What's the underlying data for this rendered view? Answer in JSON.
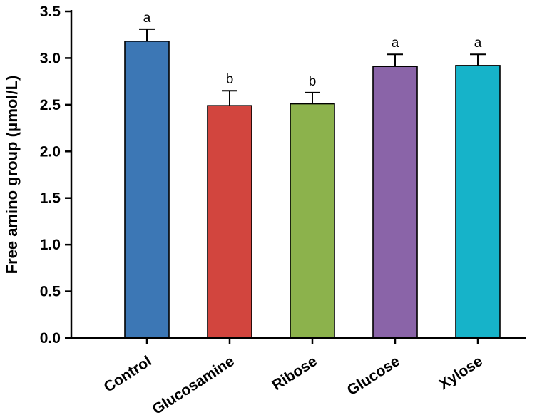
{
  "chart_data": {
    "type": "bar",
    "title": "",
    "categories": [
      "Control",
      "Glucosamine",
      "Ribose",
      "Glucose",
      "Xylose"
    ],
    "values": [
      3.18,
      2.49,
      2.51,
      2.91,
      2.92
    ],
    "errors": [
      0.13,
      0.16,
      0.12,
      0.13,
      0.12
    ],
    "sig_letters": [
      "a",
      "b",
      "b",
      "a",
      "a"
    ],
    "bar_colors": [
      "#3c77b5",
      "#d2453e",
      "#8cb24c",
      "#8a64a8",
      "#16b3c9"
    ],
    "bar_edge_color": "#000000",
    "error_bar_color": "#000000",
    "axis_color": "#000000",
    "xlabel": "",
    "ylabel": "Free amino group (μmol/L)",
    "ylim": [
      0,
      3.5
    ],
    "ytick_step": 0.5,
    "yticks": [
      "0.0",
      "0.5",
      "1.0",
      "1.5",
      "2.0",
      "2.5",
      "3.0",
      "3.5"
    ],
    "grid": false,
    "legend": "none",
    "x_label_rotation_deg": -33
  }
}
